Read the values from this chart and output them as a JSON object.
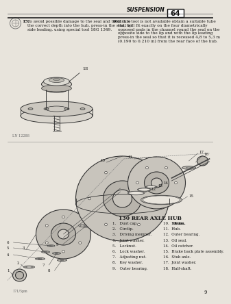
{
  "bg_color": "#e8e4dc",
  "page_header": "SUSPENSION",
  "page_num": "64",
  "section15_num": "15.",
  "section15_text": "To avoid possible damage to the seal and to ensure\nthe correct depth into the hub, press-in the seal, lip\nside leading, using special tool 18G 1349.",
  "section16_num": "16.",
  "section16_text": "If this tool is not available obtain a suitable tube\nthat will fit exactly on the four diametrically\nopposed pads in the channel round the seal on the\nopposite side to the lip and with the lip leading\npress-in the seal so that it is recessed 4,8 to 5,3 m\n(0.190 to 0.210 in) from the rear face of the hub.",
  "diagram_title": "130 REAR AXLE HUB",
  "col1_items": [
    "1.   Dust cap.",
    "2.   Circlip.",
    "3.   Driving member.",
    "4.   Joint washer.",
    "5.   Locknut.",
    "6.   Lock washer.",
    "7.   Adjusting nut.",
    "8.   Key washer.",
    "9.   Outer bearing."
  ],
  "col2_items": [
    "10.  Brake drum.",
    "11.  Hub.",
    "12.  Outer bearing.",
    "13.  Oil seal.",
    "14.  Oil catcher.",
    "15.  Brake back plate assembly.",
    "16.  Stub axle.",
    "17.  Joint washer.",
    "18.  Half-shaft."
  ],
  "col2_bold_indices": [
    0
  ],
  "col2_bold_word_end": [
    2
  ],
  "fig_ref_top": "LN 12288",
  "fig_ref_bot": "171/5pm",
  "page_num_bot": "9",
  "text_color": "#111111",
  "mid_color": "#444444",
  "light_color": "#888888"
}
